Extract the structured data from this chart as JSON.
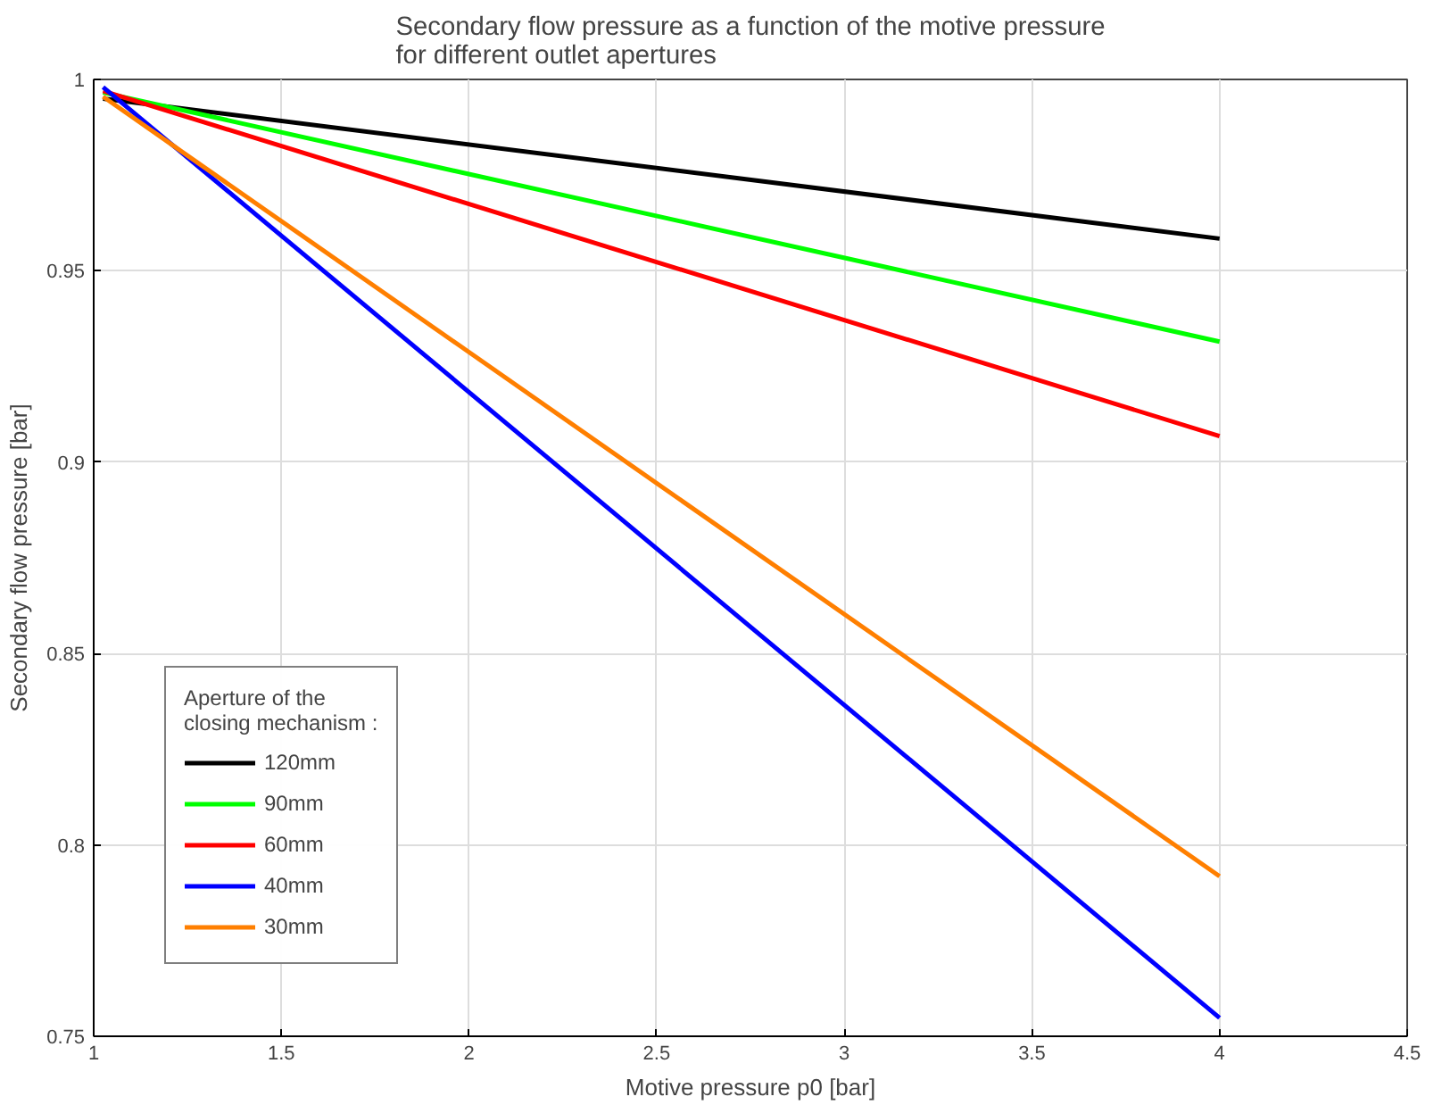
{
  "chart_data": {
    "type": "line",
    "title": "Secondary flow pressure as a function of the motive pressure\nfor different outlet apertures",
    "xlabel": "Motive pressure p0 [bar]",
    "ylabel": "Secondary flow pressure [bar]",
    "legend_title": "Aperture of the\nclosing mechanism :",
    "x": [
      1.025,
      4
    ],
    "series": [
      {
        "name": "120mm",
        "color": "#000000",
        "values": [
          0.995,
          0.9584
        ]
      },
      {
        "name": "90mm",
        "color": "#00ff00",
        "values": [
          0.9966,
          0.9315
        ]
      },
      {
        "name": "60mm",
        "color": "#ff0000",
        "values": [
          0.997,
          0.9068
        ]
      },
      {
        "name": "40mm",
        "color": "#0000ff",
        "values": [
          0.998,
          0.7548
        ]
      },
      {
        "name": "30mm",
        "color": "#ff7f00",
        "values": [
          0.9955,
          0.7918
        ]
      }
    ],
    "xlim": [
      1,
      4.5
    ],
    "xticks": [
      1,
      1.5,
      2,
      2.5,
      3,
      3.5,
      4,
      4.5
    ],
    "ylim": [
      0.75,
      1
    ],
    "yticks": [
      0.75,
      0.8,
      0.85,
      0.9,
      0.95,
      1
    ],
    "grid": true,
    "legend": "bottom left",
    "marker": "none",
    "line_style": "solid"
  }
}
